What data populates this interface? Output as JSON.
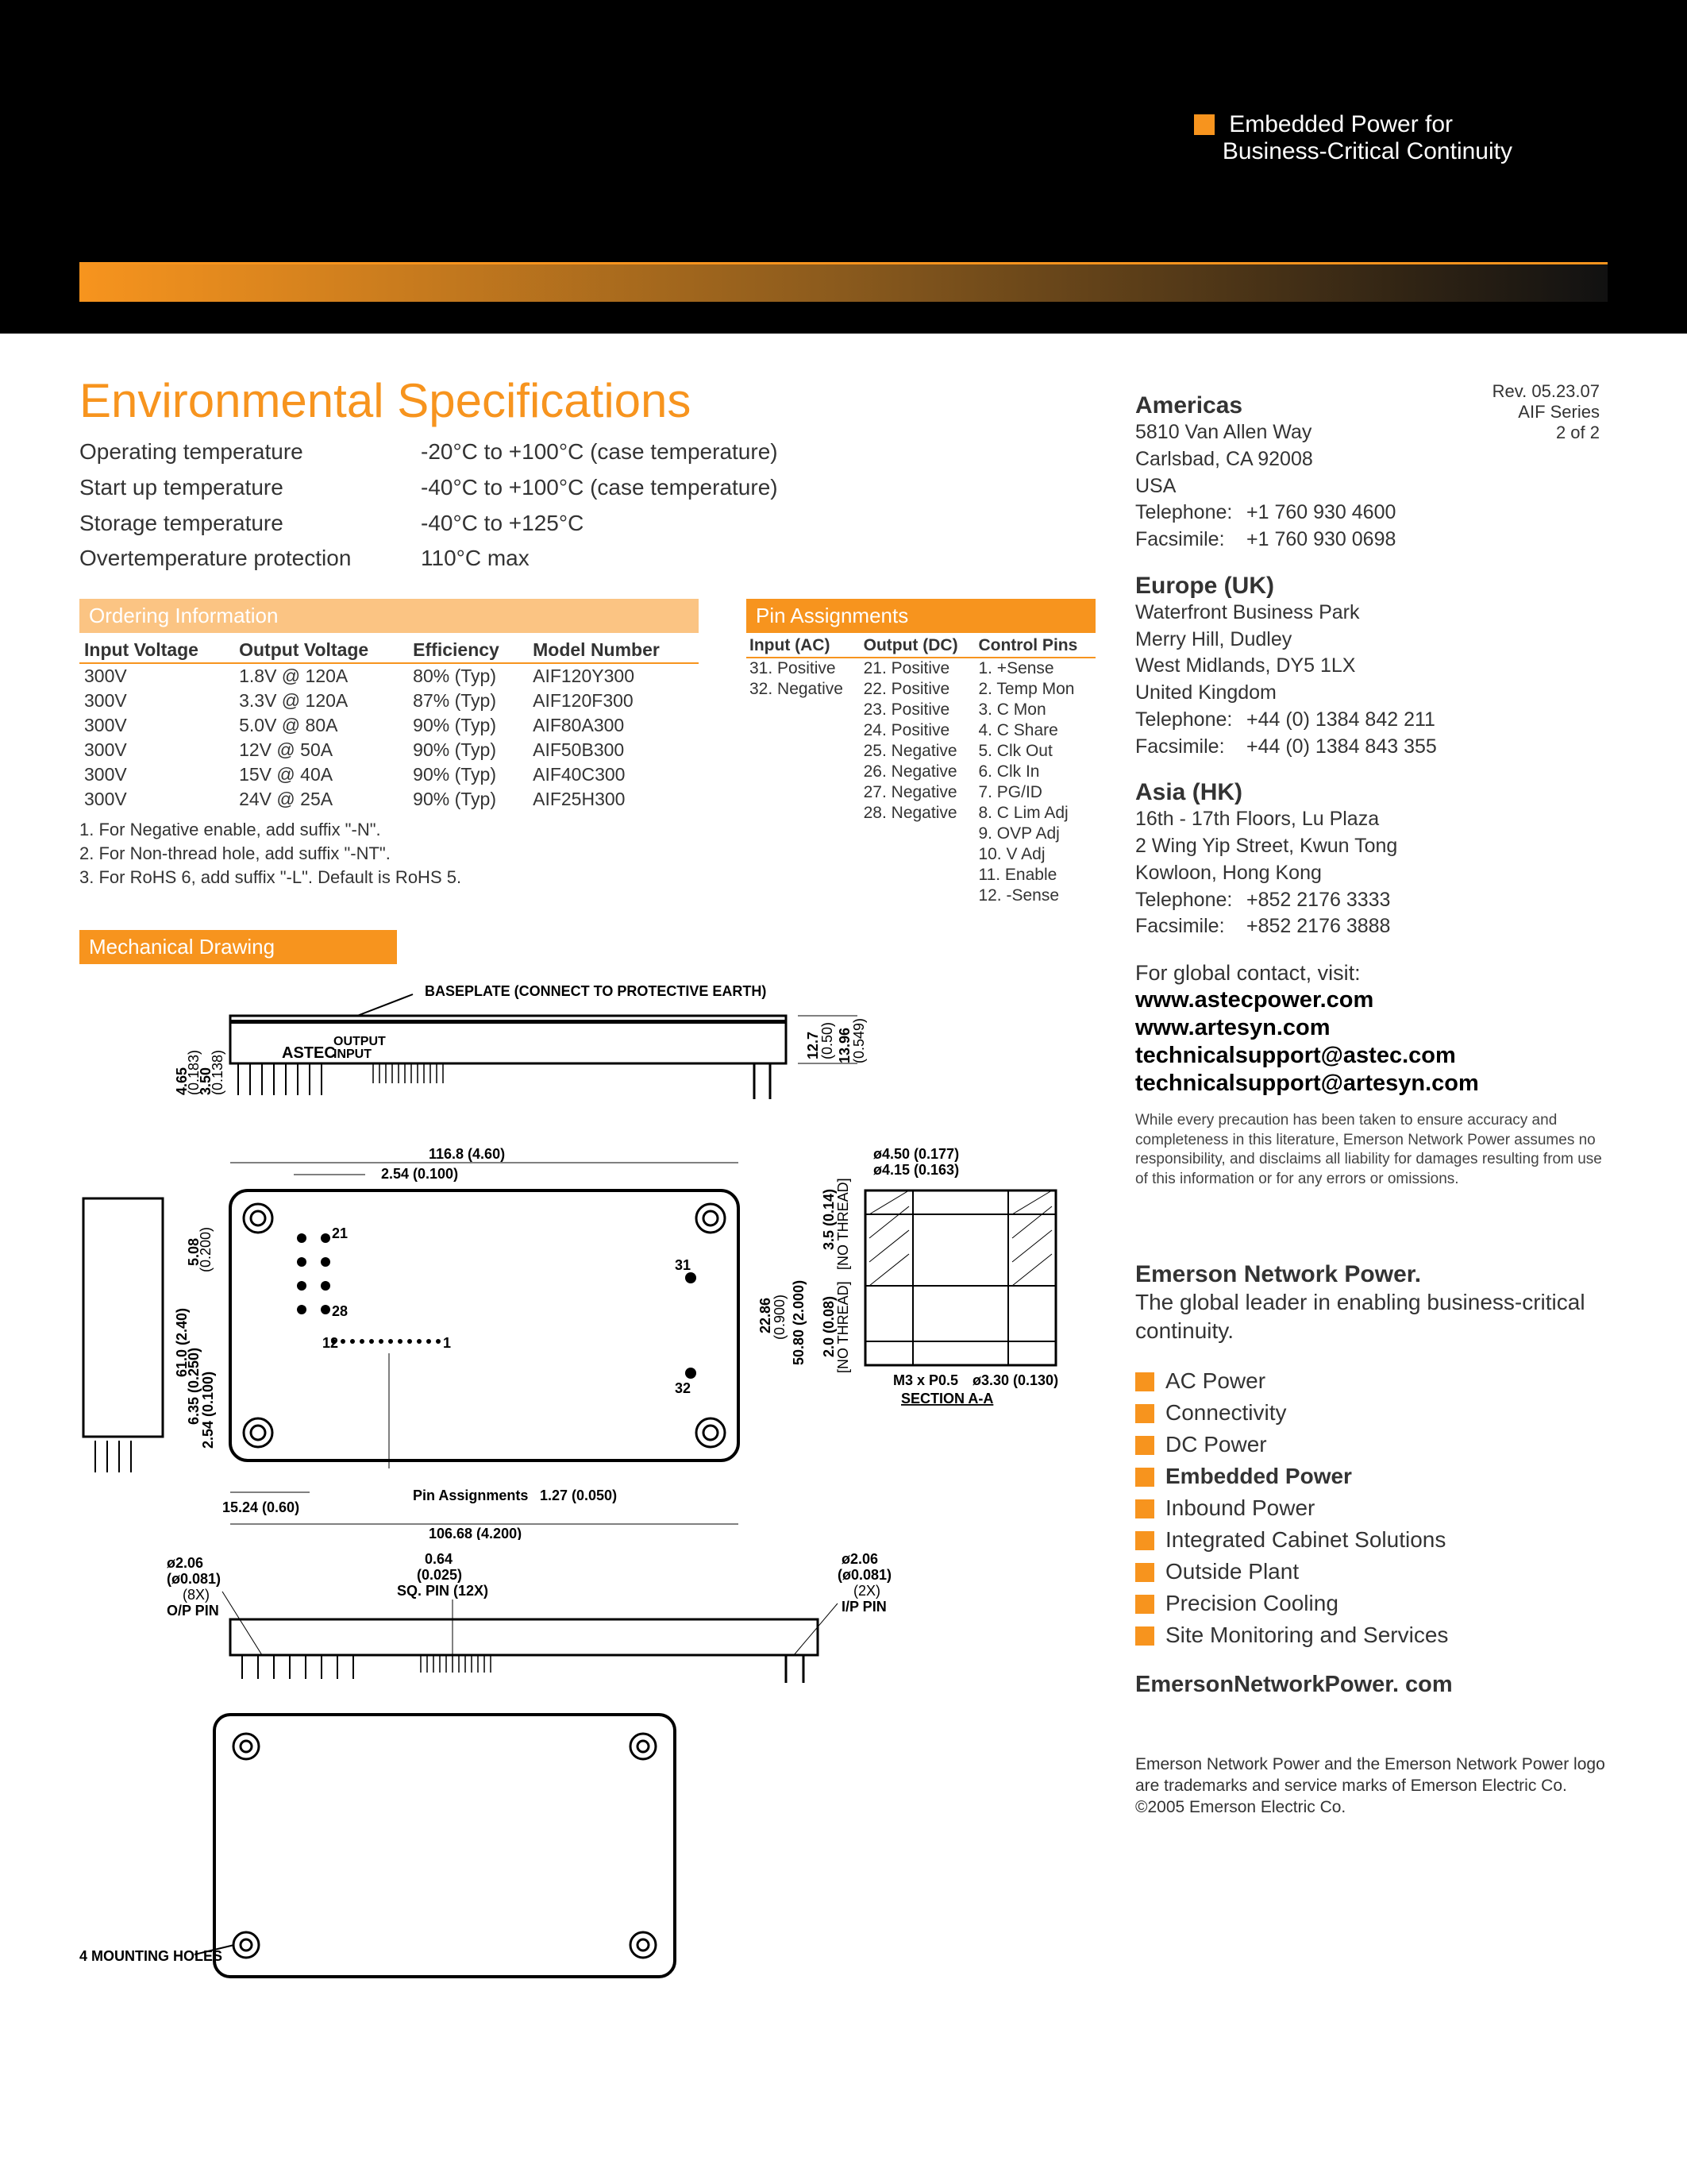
{
  "banner": {
    "tagline1": "Embedded Power for",
    "tagline2": "Business-Critical Continuity"
  },
  "rev": {
    "line1": "Rev. 05.23.07",
    "line2": "AIF Series",
    "line3": "2 of 2"
  },
  "main_title": "Environmental Specifications",
  "env": [
    {
      "label": "Operating temperature",
      "value": "-20°C to +100°C (case temperature)"
    },
    {
      "label": "Start up temperature",
      "value": "-40°C to +100°C (case temperature)"
    },
    {
      "label": "Storage temperature",
      "value": "-40°C to +125°C"
    },
    {
      "label": "Overtemperature protection",
      "value": "110°C max"
    }
  ],
  "ordering_header": "Ordering Information",
  "ordering_cols": [
    "Input Voltage",
    "Output Voltage",
    "Efficiency",
    "Model Number"
  ],
  "ordering_rows": [
    [
      "300V",
      "1.8V @ 120A",
      "80% (Typ)",
      "AIF120Y300"
    ],
    [
      "300V",
      "3.3V @ 120A",
      "87% (Typ)",
      "AIF120F300"
    ],
    [
      "300V",
      "5.0V @ 80A",
      "90% (Typ)",
      "AIF80A300"
    ],
    [
      "300V",
      "12V @ 50A",
      "90% (Typ)",
      "AIF50B300"
    ],
    [
      "300V",
      "15V @ 40A",
      "90% (Typ)",
      "AIF40C300"
    ],
    [
      "300V",
      "24V @ 25A",
      "90% (Typ)",
      "AIF25H300"
    ]
  ],
  "ordering_notes": [
    "1. For Negative enable, add suffix \"-N\".",
    "2. For Non-thread hole, add suffix \"-NT\".",
    "3. For RoHS 6, add suffix \"-L\". Default is RoHS 5."
  ],
  "pins_header": "Pin Assignments",
  "pins_cols": [
    "Input (AC)",
    "Output (DC)",
    "Control Pins"
  ],
  "pins_rows": [
    [
      "31. Positive",
      "21. Positive",
      "1. +Sense"
    ],
    [
      "32. Negative",
      "22. Positive",
      "2. Temp Mon"
    ],
    [
      "",
      "23. Positive",
      "3. C Mon"
    ],
    [
      "",
      "24. Positive",
      "4. C Share"
    ],
    [
      "",
      "25. Negative",
      "5. Clk Out"
    ],
    [
      "",
      "26. Negative",
      "6. Clk In"
    ],
    [
      "",
      "27. Negative",
      "7. PG/ID"
    ],
    [
      "",
      "28. Negative",
      "8. C Lim Adj"
    ],
    [
      "",
      "",
      "9. OVP Adj"
    ],
    [
      "",
      "",
      "10. V Adj"
    ],
    [
      "",
      "",
      "11. Enable"
    ],
    [
      "",
      "",
      "12. -Sense"
    ]
  ],
  "mech_header": "Mechanical Drawing",
  "drawing_labels": {
    "baseplate": "BASEPLATE (CONNECT TO PROTECTIVE EARTH)",
    "output": "OUTPUT",
    "input": "INPUT",
    "astec": "ASTEC",
    "d1a": "4.65",
    "d1b": "(0.183)",
    "d2a": "3.50",
    "d2b": "(0.138)",
    "d3a": "12.7",
    "d3b": "(0.50)",
    "d4a": "13.96",
    "d4b": "(0.549)",
    "top_w": "116.8 (4.60)",
    "inner_w": "2.54 (0.100)",
    "side_a": "5.08",
    "side_a2": "(0.200)",
    "side_b": "61.0 (2.40)",
    "side_c": "6.35 (0.250)",
    "side_d": "2.54 (0.100)",
    "bot_a": "15.24 (0.60)",
    "bot_b": "106.68 (4.200)",
    "bot_c": "1.27 (0.050)",
    "pin_asg": "Pin Assignments",
    "p21": "21",
    "p28": "28",
    "p31": "31",
    "p32": "32",
    "p12": "12",
    "p1": "1",
    "det_a": "ø4.50 (0.177)",
    "det_b": "ø4.15 (0.163)",
    "det_c": "3.5 (0.14)",
    "det_c2": "[NO THREAD]",
    "det_d": "2.0 (0.08)",
    "det_d2": "[NO THREAD]",
    "det_e": "ø3.30 (0.130)",
    "det_f": "M3 x P0.5",
    "det_g": "SECTION A-A",
    "det_h": "22.86",
    "det_h2": "(0.900)",
    "det_i": "50.80 (2.000)",
    "pin_a": "ø2.06",
    "pin_a2": "(ø0.081)",
    "pin_a3": "(8X)",
    "pin_a4": "O/P PIN",
    "pin_b": "0.64",
    "pin_b2": "(0.025)",
    "pin_b3": "SQ. PIN (12X)",
    "pin_c": "ø2.06",
    "pin_c2": "(ø0.081)",
    "pin_c3": "(2X)",
    "pin_c4": "I/P PIN",
    "holes": "4 MOUNTING HOLES"
  },
  "contacts": {
    "americas": {
      "title": "Americas",
      "lines": [
        "5810 Van Allen Way",
        "Carlsbad, CA 92008",
        "USA"
      ],
      "tel": "+1 760 930 4600",
      "fax": "+1 760 930 0698"
    },
    "europe": {
      "title": "Europe (UK)",
      "lines": [
        "Waterfront Business Park",
        "Merry Hill, Dudley",
        "West Midlands, DY5 1LX",
        "United Kingdom"
      ],
      "tel": "+44 (0) 1384 842 211",
      "fax": "+44 (0) 1384 843 355"
    },
    "asia": {
      "title": "Asia (HK)",
      "lines": [
        "16th - 17th Floors, Lu Plaza",
        "2 Wing Yip Street, Kwun Tong",
        "Kowloon, Hong Kong"
      ],
      "tel": "+852 2176 3333",
      "fax": "+852 2176 3888"
    },
    "tel_label": "Telephone:",
    "fax_label": "Facsimile:"
  },
  "global_visit": "For global contact, visit:",
  "links": [
    "www.astecpower.com",
    "www.artesyn.com",
    "technicalsupport@astec.com",
    "technicalsupport@artesyn.com"
  ],
  "disclaimer": "While every precaution has been taken to ensure accuracy and completeness in this literature, Emerson Network Power assumes no responsibility, and disclaims\nall liability for damages resulting from use of this information or for any errors or omissions.",
  "enp": {
    "title": "Emerson Network Power.",
    "sub": "The global leader in enabling business-critical continuity.",
    "services": [
      "AC Power",
      "Connectivity",
      "DC Power",
      "Embedded Power",
      "Inbound Power",
      "Integrated Cabinet Solutions",
      "Outside Plant",
      "Precision Cooling",
      "Site Monitoring and Services"
    ],
    "current_index": 3,
    "url": "EmersonNetworkPower. com"
  },
  "trademark": "Emerson Network Power and the Emerson Network Power logo are trademarks and service marks of Emerson Electric Co.\n©2005 Emerson Electric Co."
}
